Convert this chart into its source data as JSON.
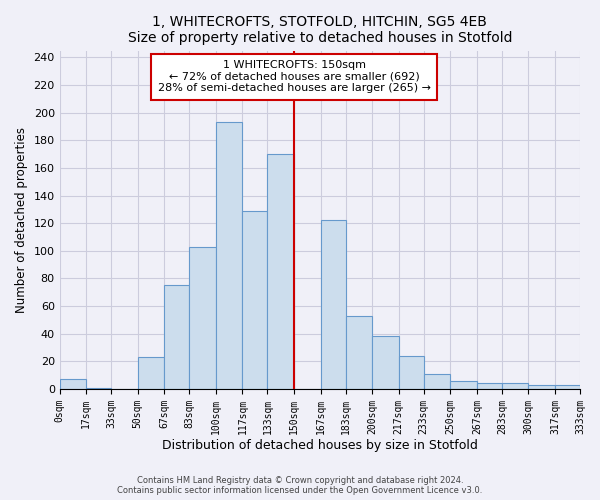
{
  "title": "1, WHITECROFTS, STOTFOLD, HITCHIN, SG5 4EB",
  "subtitle": "Size of property relative to detached houses in Stotfold",
  "xlabel": "Distribution of detached houses by size in Stotfold",
  "ylabel": "Number of detached properties",
  "bar_edges": [
    0,
    17,
    33,
    50,
    67,
    83,
    100,
    117,
    133,
    150,
    167,
    183,
    200,
    217,
    233,
    250,
    267,
    283,
    300,
    317,
    333
  ],
  "bar_heights": [
    7,
    1,
    0,
    23,
    75,
    103,
    193,
    129,
    170,
    0,
    122,
    53,
    38,
    24,
    11,
    6,
    4,
    4,
    3,
    3
  ],
  "bar_color": "#ccdded",
  "bar_edgecolor": "#6699cc",
  "marker_x": 150,
  "marker_color": "#cc0000",
  "annotation_text": "1 WHITECROFTS: 150sqm\n← 72% of detached houses are smaller (692)\n28% of semi-detached houses are larger (265) →",
  "annotation_box_edgecolor": "#cc0000",
  "yticks": [
    0,
    20,
    40,
    60,
    80,
    100,
    120,
    140,
    160,
    180,
    200,
    220,
    240
  ],
  "ylim": [
    0,
    245
  ],
  "xlim": [
    0,
    333
  ],
  "tick_labels": [
    "0sqm",
    "17sqm",
    "33sqm",
    "50sqm",
    "67sqm",
    "83sqm",
    "100sqm",
    "117sqm",
    "133sqm",
    "150sqm",
    "167sqm",
    "183sqm",
    "200sqm",
    "217sqm",
    "233sqm",
    "250sqm",
    "267sqm",
    "283sqm",
    "300sqm",
    "317sqm",
    "333sqm"
  ],
  "footer_line1": "Contains HM Land Registry data © Crown copyright and database right 2024.",
  "footer_line2": "Contains public sector information licensed under the Open Government Licence v3.0.",
  "bg_color": "#f0f0f8",
  "grid_color": "#ccccdd"
}
